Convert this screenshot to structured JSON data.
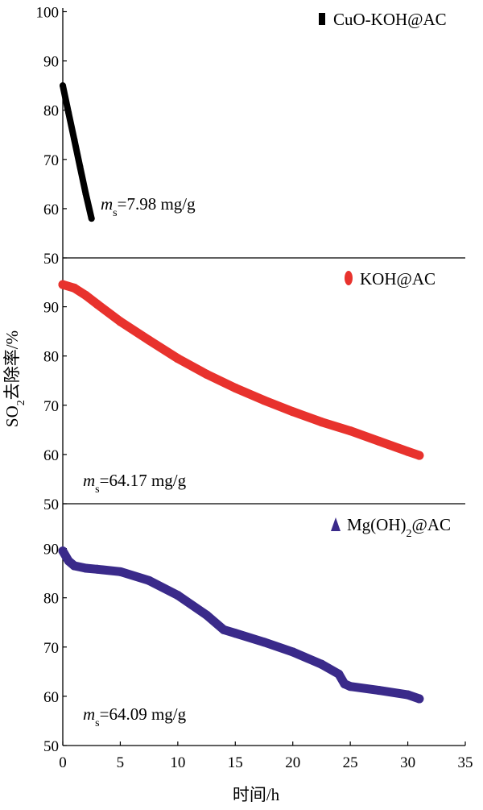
{
  "chart_data": {
    "type": "line",
    "title": "",
    "xlabel": "时间/h",
    "ylabel_main": "SO",
    "ylabel_sub": "2",
    "ylabel_rest": "去除率/%",
    "xlim": [
      0,
      35
    ],
    "x_ticks": [
      "0",
      "5",
      "10",
      "15",
      "20",
      "25",
      "30",
      "35"
    ],
    "grid": false,
    "legend_placement": "top-right",
    "panels": [
      {
        "ylim": [
          50,
          100
        ],
        "y_ticks": [
          "50",
          "60",
          "70",
          "80",
          "90",
          "100"
        ],
        "series": {
          "name_main": "CuO-KOH@AC",
          "name_sub": "",
          "name_tail": "",
          "color": "#000000",
          "marker": "square",
          "x": [
            0,
            0.5,
            1.0,
            1.5,
            2.0,
            2.5
          ],
          "y": [
            85,
            79.5,
            74,
            68.5,
            63,
            58
          ]
        },
        "annotation": {
          "m": "m",
          "sub": "s",
          "text": "=7.98 mg/g"
        }
      },
      {
        "ylim": [
          50,
          100
        ],
        "y_ticks": [
          "50",
          "60",
          "70",
          "80",
          "90"
        ],
        "series": {
          "name_main": "KOH@AC",
          "name_sub": "",
          "name_tail": "",
          "color": "#e8322d",
          "marker": "circle",
          "x": [
            0,
            1,
            2,
            3,
            5,
            7.5,
            10,
            12.5,
            15,
            17.5,
            20,
            22.5,
            25,
            27.5,
            30,
            31
          ],
          "y": [
            94.5,
            93.8,
            92.3,
            90.5,
            87,
            83.2,
            79.5,
            76.3,
            73.5,
            71,
            68.7,
            66.6,
            64.8,
            62.7,
            60.6,
            59.8
          ]
        },
        "annotation": {
          "m": "m",
          "sub": "s",
          "text": "=64.17 mg/g"
        }
      },
      {
        "ylim": [
          50,
          100
        ],
        "y_ticks": [
          "50",
          "60",
          "70",
          "80",
          "90"
        ],
        "series": {
          "name_main": "Mg(OH)",
          "name_sub": "2",
          "name_tail": "@AC",
          "color": "#3a2a8a",
          "marker": "triangle",
          "x": [
            0,
            0.5,
            1,
            2,
            3,
            5,
            7.5,
            10,
            12.5,
            14,
            15,
            17.5,
            20,
            22.5,
            24,
            24.5,
            25,
            27.5,
            30,
            31
          ],
          "y": [
            89.5,
            87.5,
            86.5,
            86.0,
            85.8,
            85.3,
            83.5,
            80.5,
            76.5,
            73.5,
            72.8,
            71,
            69,
            66.5,
            64.5,
            62.5,
            62.0,
            61.2,
            60.3,
            59.5
          ]
        },
        "annotation": {
          "m": "m",
          "sub": "s",
          "text": "=64.09 mg/g"
        }
      }
    ]
  }
}
